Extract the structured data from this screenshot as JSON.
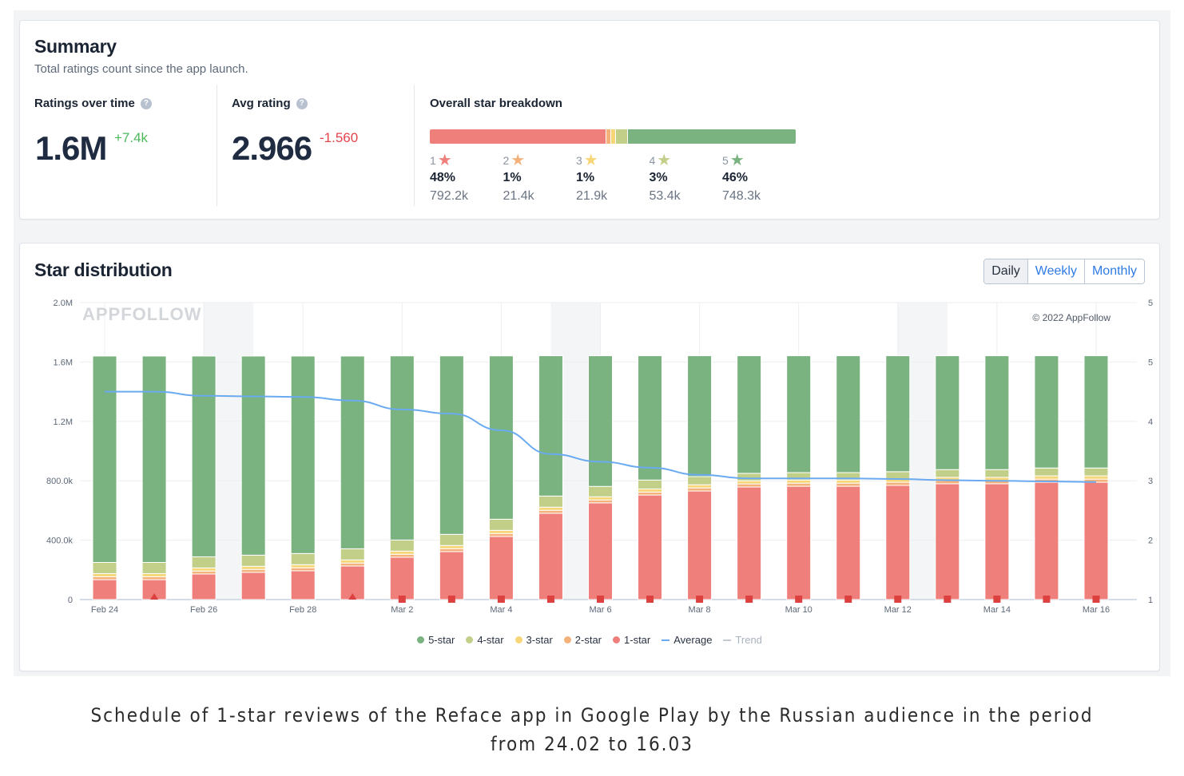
{
  "summary": {
    "title": "Summary",
    "subtitle": "Total ratings count since the app launch.",
    "ratings_over_time": {
      "label": "Ratings over time",
      "help_icon": "question-icon",
      "value": "1.6M",
      "delta": "+7.4k"
    },
    "avg_rating": {
      "label": "Avg rating",
      "help_icon": "question-icon",
      "value": "2.966",
      "delta": "-1.560"
    },
    "breakdown": {
      "label": "Overall star breakdown",
      "stars": [
        {
          "star": "1",
          "percent": "48%",
          "count": "792.2k",
          "share": 48.3,
          "color": "#ef7f7a"
        },
        {
          "star": "2",
          "percent": "1%",
          "count": "21.4k",
          "share": 1.3,
          "color": "#f4b27a"
        },
        {
          "star": "3",
          "percent": "1%",
          "count": "21.9k",
          "share": 1.3,
          "color": "#f6d677"
        },
        {
          "star": "4",
          "percent": "3%",
          "count": "53.4k",
          "share": 3.3,
          "color": "#c1cf89"
        },
        {
          "star": "5",
          "percent": "46%",
          "count": "748.3k",
          "share": 45.8,
          "color": "#7ab37f"
        }
      ]
    }
  },
  "distribution": {
    "title": "Star distribution",
    "tabs": [
      {
        "label": "Daily",
        "active": true
      },
      {
        "label": "Weekly",
        "active": false
      },
      {
        "label": "Monthly",
        "active": false
      }
    ],
    "watermark": "APPFOLLOW",
    "copyright": "© 2022 AppFollow",
    "legend": [
      {
        "label": "5-star",
        "color": "#7ab37f",
        "kind": "dot"
      },
      {
        "label": "4-star",
        "color": "#c1cf89",
        "kind": "dot"
      },
      {
        "label": "3-star",
        "color": "#f6d677",
        "kind": "dot"
      },
      {
        "label": "2-star",
        "color": "#f4b27a",
        "kind": "dot"
      },
      {
        "label": "1-star",
        "color": "#ef7f7a",
        "kind": "dot"
      },
      {
        "label": "Average",
        "color": "#6aaaf0",
        "kind": "line"
      },
      {
        "label": "Trend",
        "color": "#c3cad4",
        "kind": "line",
        "muted": true
      }
    ]
  },
  "chart_data": {
    "type": "bar",
    "stacked": true,
    "title": "Star distribution",
    "categories": [
      "Feb 24",
      "Feb 25",
      "Feb 26",
      "Feb 27",
      "Feb 28",
      "Mar 1",
      "Mar 2",
      "Mar 3",
      "Mar 4",
      "Mar 5",
      "Mar 6",
      "Mar 7",
      "Mar 8",
      "Mar 9",
      "Mar 10",
      "Mar 11",
      "Mar 12",
      "Mar 13",
      "Mar 14",
      "Mar 15",
      "Mar 16"
    ],
    "x_tick_labels": [
      "Feb 24",
      "",
      "Feb 26",
      "",
      "Feb 28",
      "",
      "Mar 2",
      "",
      "Mar 4",
      "",
      "Mar 6",
      "",
      "Mar 8",
      "",
      "Mar 10",
      "",
      "Mar 12",
      "",
      "Mar 14",
      "",
      "Mar 16"
    ],
    "y_left": {
      "ticks": [
        "0",
        "400.0k",
        "800.0k",
        "1.2M",
        "1.6M",
        "2.0M"
      ],
      "tick_values": [
        0,
        400000,
        800000,
        1200000,
        1600000,
        2000000
      ],
      "range": [
        0,
        2000000
      ]
    },
    "y_right": {
      "ticks": [
        "1",
        "2",
        "3",
        "4",
        "5",
        "5"
      ],
      "range": [
        1,
        5
      ]
    },
    "grid": true,
    "legend_position": "bottom-center",
    "series": [
      {
        "name": "1-star",
        "color": "#ef7f7a",
        "values": [
          134000,
          134000,
          172000,
          183000,
          194000,
          226000,
          285000,
          323000,
          425000,
          581000,
          651000,
          704000,
          731000,
          758000,
          763000,
          763000,
          769000,
          780000,
          780000,
          790000,
          790000
        ]
      },
      {
        "name": "2-star",
        "color": "#f4b27a",
        "values": [
          20000,
          20000,
          20000,
          20000,
          20000,
          20000,
          20000,
          20000,
          20000,
          20000,
          20000,
          20000,
          21000,
          21000,
          21000,
          21000,
          21000,
          21000,
          21000,
          21000,
          21000
        ]
      },
      {
        "name": "3-star",
        "color": "#f6d677",
        "values": [
          21000,
          21000,
          21000,
          21000,
          21000,
          21000,
          21000,
          21000,
          21000,
          21000,
          21000,
          21000,
          21000,
          21000,
          21000,
          21000,
          21000,
          22000,
          22000,
          22000,
          22000
        ]
      },
      {
        "name": "4-star",
        "color": "#c1cf89",
        "values": [
          75000,
          75000,
          75000,
          75000,
          75000,
          75000,
          75000,
          75000,
          75000,
          75000,
          70000,
          60000,
          55000,
          50000,
          50000,
          50000,
          50000,
          52000,
          52000,
          53000,
          53000
        ]
      },
      {
        "name": "5-star",
        "color": "#7ab37f",
        "values": [
          1390000,
          1390000,
          1352000,
          1341000,
          1330000,
          1298000,
          1240000,
          1202000,
          1100000,
          945000,
          880000,
          837000,
          814000,
          792000,
          787000,
          787000,
          781000,
          767000,
          767000,
          756000,
          756000
        ]
      }
    ],
    "average": {
      "name": "Average",
      "color": "#6aaaf0",
      "axis": "right",
      "values": [
        4.5,
        4.5,
        4.43,
        4.42,
        4.41,
        4.35,
        4.2,
        4.13,
        3.85,
        3.45,
        3.32,
        3.22,
        3.1,
        3.04,
        3.04,
        3.04,
        3.03,
        3.01,
        3.0,
        2.99,
        2.98
      ]
    },
    "markers": [
      {
        "category": "Feb 25",
        "shape": "triangle"
      },
      {
        "category": "Mar 1",
        "shape": "triangle"
      },
      {
        "category": "Mar 2",
        "shape": "square"
      },
      {
        "category": "Mar 3",
        "shape": "square"
      },
      {
        "category": "Mar 4",
        "shape": "square"
      },
      {
        "category": "Mar 5",
        "shape": "square"
      },
      {
        "category": "Mar 6",
        "shape": "square"
      },
      {
        "category": "Mar 7",
        "shape": "square"
      },
      {
        "category": "Mar 8",
        "shape": "square"
      },
      {
        "category": "Mar 9",
        "shape": "square"
      },
      {
        "category": "Mar 10",
        "shape": "square"
      },
      {
        "category": "Mar 11",
        "shape": "square"
      },
      {
        "category": "Mar 12",
        "shape": "square"
      },
      {
        "category": "Mar 13",
        "shape": "square"
      },
      {
        "category": "Mar 14",
        "shape": "square"
      },
      {
        "category": "Mar 15",
        "shape": "square"
      },
      {
        "category": "Mar 16",
        "shape": "square"
      }
    ],
    "weekend_bands": [
      [
        "Feb 26",
        "Feb 27"
      ],
      [
        "Mar 5",
        "Mar 6"
      ],
      [
        "Mar 12",
        "Mar 13"
      ]
    ]
  },
  "caption": {
    "line1": "Schedule of 1-star reviews of the Reface app in Google Play by the Russian audience in the period",
    "line2": "from 24.02 to 16.03"
  }
}
